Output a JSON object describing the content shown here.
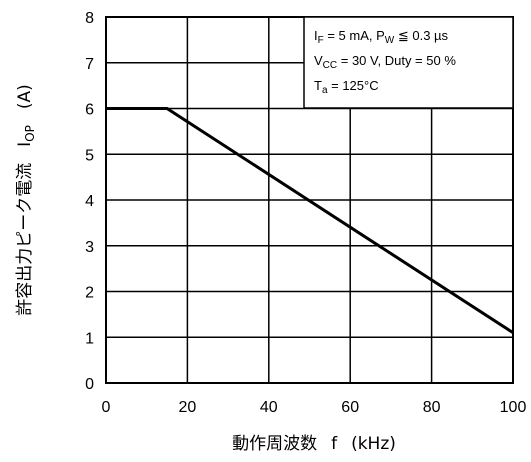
{
  "chart_data": {
    "type": "line",
    "title": "",
    "xlabel": {
      "text": "動作周波数",
      "symbol": "f",
      "unit": "(kHz)"
    },
    "ylabel": {
      "text": "許容出力ピーク電流",
      "symbol_main": "I",
      "symbol_sub": "OP",
      "unit": "(A)"
    },
    "xlim": [
      0,
      100
    ],
    "ylim": [
      0,
      8
    ],
    "x_ticks": [
      0,
      20,
      40,
      60,
      80,
      100
    ],
    "y_ticks": [
      0,
      1,
      2,
      3,
      4,
      5,
      6,
      7,
      8
    ],
    "grid": true,
    "legend_position": "top-right",
    "series": [
      {
        "x": [
          0,
          15,
          100
        ],
        "y": [
          6.0,
          6.0,
          1.1
        ]
      }
    ],
    "conditions": [
      {
        "main": "I",
        "sub": "F",
        "rest1": " = 5 mA, P",
        "sub2": "W",
        "rest2": " ≦ 0.3 µs"
      },
      {
        "main": "V",
        "sub": "CC",
        "rest1": " = 30 V, Duty = 50 %",
        "sub2": "",
        "rest2": ""
      },
      {
        "main": "T",
        "sub": "a",
        "rest1": " = 125°C",
        "sub2": "",
        "rest2": ""
      }
    ]
  }
}
